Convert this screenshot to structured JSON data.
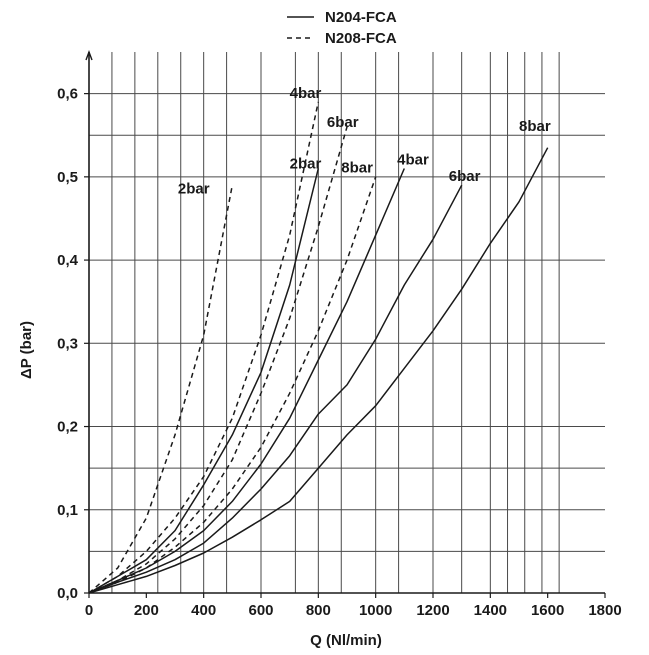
{
  "chart_data": {
    "type": "line",
    "title": "",
    "xlabel": "Q (Nl/min)",
    "ylabel": "ΔP  (bar)",
    "xlim": [
      0,
      1800
    ],
    "ylim": [
      0,
      0.65
    ],
    "grid": true,
    "legend_position": "top-center",
    "legend": [
      {
        "label": "N204-FCA",
        "style": "solid"
      },
      {
        "label": "N208-FCA",
        "style": "dashed"
      }
    ],
    "x_ticks": [
      {
        "value": 0,
        "label": "0"
      },
      {
        "value": 200,
        "label": "200"
      },
      {
        "value": 400,
        "label": "400"
      },
      {
        "value": 600,
        "label": "600"
      },
      {
        "value": 800,
        "label": "800"
      },
      {
        "value": 1000,
        "label": "1000"
      },
      {
        "value": 1200,
        "label": "1200"
      },
      {
        "value": 1400,
        "label": "1400"
      },
      {
        "value": 1600,
        "label": "1600"
      },
      {
        "value": 1800,
        "label": "1800"
      }
    ],
    "y_ticks": [
      {
        "value": 0.0,
        "label": "0,0"
      },
      {
        "value": 0.1,
        "label": "0,1"
      },
      {
        "value": 0.2,
        "label": "0,2"
      },
      {
        "value": 0.3,
        "label": "0,3"
      },
      {
        "value": 0.4,
        "label": "0,4"
      },
      {
        "value": 0.5,
        "label": "0,5"
      },
      {
        "value": 0.6,
        "label": "0,6"
      }
    ],
    "x_grid": [
      0,
      80,
      160,
      240,
      320,
      400,
      480,
      600,
      720,
      800,
      880,
      1000,
      1080,
      1200,
      1300,
      1400,
      1460,
      1520,
      1580,
      1640
    ],
    "y_grid": [
      0.05,
      0.1,
      0.15,
      0.2,
      0.3,
      0.4,
      0.5,
      0.55,
      0.6
    ],
    "series": [
      {
        "label": "2bar",
        "group": "N208-FCA",
        "style": "dashed",
        "x": [
          0,
          100,
          200,
          300,
          400,
          500
        ],
        "y": [
          0,
          0.03,
          0.09,
          0.19,
          0.31,
          0.49
        ]
      },
      {
        "label": "4bar",
        "group": "N208-FCA",
        "style": "dashed",
        "x": [
          0,
          100,
          200,
          300,
          400,
          500,
          600,
          700,
          800
        ],
        "y": [
          0,
          0.02,
          0.05,
          0.09,
          0.14,
          0.21,
          0.31,
          0.43,
          0.59
        ]
      },
      {
        "label": "6bar",
        "group": "N208-FCA",
        "style": "dashed",
        "x": [
          0,
          100,
          200,
          300,
          400,
          500,
          600,
          700,
          800,
          900
        ],
        "y": [
          0,
          0.015,
          0.035,
          0.065,
          0.105,
          0.16,
          0.24,
          0.33,
          0.44,
          0.56
        ]
      },
      {
        "label": "8bar",
        "group": "N208-FCA",
        "style": "dashed",
        "x": [
          0,
          100,
          200,
          300,
          400,
          500,
          600,
          700,
          800,
          900,
          1000
        ],
        "y": [
          0,
          0.013,
          0.03,
          0.055,
          0.085,
          0.125,
          0.175,
          0.24,
          0.315,
          0.4,
          0.5
        ]
      },
      {
        "label": "2bar",
        "group": "N204-FCA",
        "style": "solid",
        "x": [
          0,
          100,
          200,
          300,
          400,
          500,
          600,
          700,
          800
        ],
        "y": [
          0,
          0.02,
          0.04,
          0.075,
          0.13,
          0.19,
          0.265,
          0.37,
          0.51
        ]
      },
      {
        "label": "4bar",
        "group": "N204-FCA",
        "style": "solid",
        "x": [
          0,
          100,
          200,
          300,
          400,
          500,
          600,
          700,
          800,
          900,
          1000,
          1100
        ],
        "y": [
          0,
          0.015,
          0.03,
          0.05,
          0.075,
          0.11,
          0.155,
          0.21,
          0.28,
          0.35,
          0.43,
          0.51
        ]
      },
      {
        "label": "6bar",
        "group": "N204-FCA",
        "style": "solid",
        "x": [
          0,
          100,
          200,
          300,
          400,
          500,
          600,
          700,
          800,
          900,
          1000,
          1100,
          1200,
          1300
        ],
        "y": [
          0,
          0.013,
          0.025,
          0.04,
          0.06,
          0.09,
          0.125,
          0.165,
          0.215,
          0.25,
          0.305,
          0.37,
          0.425,
          0.49
        ]
      },
      {
        "label": "8bar",
        "group": "N204-FCA",
        "style": "solid",
        "x": [
          0,
          100,
          200,
          300,
          400,
          500,
          600,
          700,
          800,
          900,
          1000,
          1100,
          1200,
          1300,
          1400,
          1500,
          1600
        ],
        "y": [
          0,
          0.01,
          0.02,
          0.033,
          0.048,
          0.067,
          0.088,
          0.11,
          0.15,
          0.19,
          0.225,
          0.27,
          0.315,
          0.365,
          0.42,
          0.47,
          0.535
        ]
      }
    ],
    "curve_labels": [
      {
        "text": "4bar",
        "x": 700,
        "y": 0.595
      },
      {
        "text": "6bar",
        "x": 830,
        "y": 0.56
      },
      {
        "text": "2bar",
        "x": 700,
        "y": 0.51
      },
      {
        "text": "8bar",
        "x": 880,
        "y": 0.505
      },
      {
        "text": "4bar",
        "x": 1075,
        "y": 0.515
      },
      {
        "text": "6bar",
        "x": 1255,
        "y": 0.495
      },
      {
        "text": "8bar",
        "x": 1500,
        "y": 0.555
      },
      {
        "text": "2bar",
        "x": 310,
        "y": 0.48
      }
    ]
  }
}
